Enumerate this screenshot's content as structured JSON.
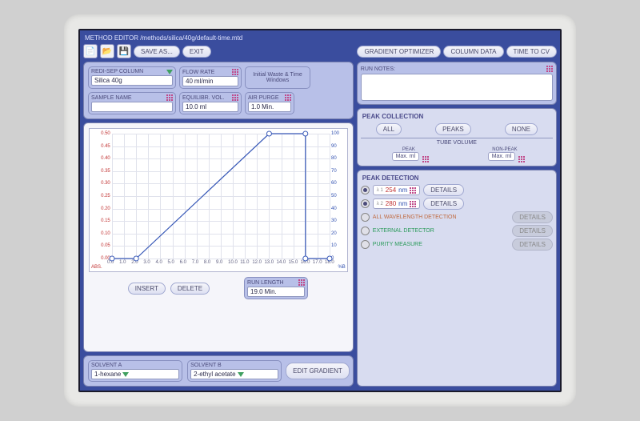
{
  "title": "METHOD EDITOR /methods/silica/40g/default-time.mtd",
  "toolbar": {
    "save_as": "SAVE AS...",
    "exit": "EXIT",
    "grad_opt": "GRADIENT OPTIMIZER",
    "col_data": "COLUMN DATA",
    "time_cv": "TIME TO CV"
  },
  "params": {
    "redi_label": "REDI-SEP COLUMN",
    "redi_val": "Silica 40g",
    "flow_label": "FLOW RATE",
    "flow_val": "40",
    "flow_unit": "ml/min",
    "waste_label": "Initial Waste & Time Windows",
    "sample_label": "SAMPLE NAME",
    "sample_val": "",
    "equil_label": "EQUILIBR. VOL.",
    "equil_val": "10.0",
    "equil_unit": "ml",
    "air_label": "AIR PURGE",
    "air_val": "1.0",
    "air_unit": "Min."
  },
  "chart": {
    "y_left": [
      "0.50",
      "0.45",
      "0.40",
      "0.35",
      "0.30",
      "0.25",
      "0.20",
      "0.15",
      "0.10",
      "0.05",
      "0.00"
    ],
    "y_right": [
      "100",
      "90",
      "80",
      "70",
      "60",
      "50",
      "40",
      "30",
      "20",
      "10",
      "0"
    ],
    "x": [
      "0.0",
      "1.0",
      "2.0",
      "3.0",
      "4.0",
      "5.0",
      "6.0",
      "7.0",
      "8.0",
      "9.0",
      "10.0",
      "11.0",
      "12.0",
      "13.0",
      "14.0",
      "15.0",
      "16.0",
      "17.0",
      "18.0"
    ],
    "abs_label": "ABS.",
    "pctb_label": "%B",
    "line_color": "#3a5ab8",
    "points": [
      [
        0,
        0
      ],
      [
        2,
        0
      ],
      [
        13,
        100
      ],
      [
        16,
        100
      ],
      [
        16,
        0
      ],
      [
        18,
        0
      ]
    ],
    "xmax": 18,
    "ymax": 100
  },
  "chartbtns": {
    "insert": "INSERT",
    "delete": "DELETE",
    "runlen_label": "RUN LENGTH",
    "runlen_val": "19.0",
    "runlen_unit": "Min."
  },
  "solvent": {
    "a_label": "SOLVENT A",
    "a_val": "1-hexane",
    "b_label": "SOLVENT B",
    "b_val": "2-ethyl acetate",
    "edit": "EDIT GRADIENT"
  },
  "notes": {
    "label": "RUN NOTES:"
  },
  "peakcol": {
    "title": "PEAK COLLECTION",
    "all": "ALL",
    "peaks": "PEAKS",
    "none": "NONE",
    "tube": "TUBE VOLUME",
    "peak_l": "PEAK",
    "np_l": "NON-PEAK",
    "max": "Max.",
    "ml": "ml"
  },
  "peakdet": {
    "title": "PEAK DETECTION",
    "l1": "λ 1",
    "v1": "254",
    "l2": "λ 2",
    "v2": "280",
    "nm": "nm",
    "details": "DETAILS",
    "allwave": "ALL WAVELENGTH DETECTION",
    "ext": "EXTERNAL DETECTOR",
    "purity": "PURITY MEASURE"
  }
}
